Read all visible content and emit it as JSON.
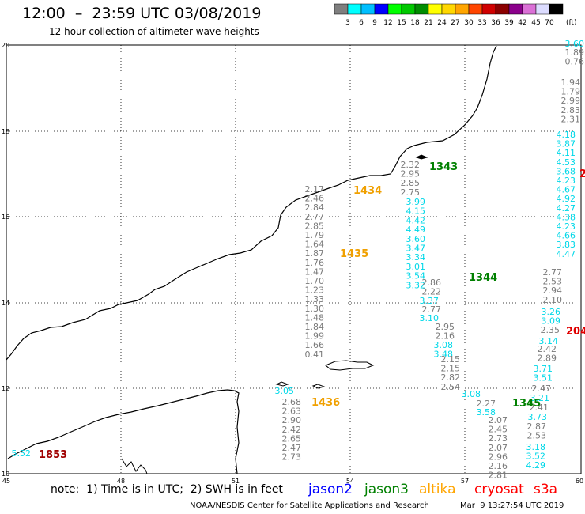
{
  "header": {
    "title": "12:00  –  23:59 UTC 03/08/2019",
    "subtitle": "12 hour collection of altimeter wave heights"
  },
  "colorbar": {
    "unit": "(ft)",
    "labels": [
      "3",
      "6",
      "9",
      "12",
      "15",
      "18",
      "21",
      "24",
      "27",
      "30",
      "33",
      "36",
      "39",
      "42",
      "45",
      "70"
    ],
    "colors": [
      "#7f7f7f",
      "#00ffff",
      "#00bfff",
      "#0000ff",
      "#00ff00",
      "#00c800",
      "#008c00",
      "#ffff00",
      "#ffd700",
      "#ffa500",
      "#ff4500",
      "#d00000",
      "#8b0000",
      "#8b008b",
      "#da70d6",
      "#dcdcff",
      "#000000"
    ]
  },
  "axes": {
    "lon_labels": [
      "45",
      "48",
      "51",
      "54",
      "57",
      "60"
    ],
    "lat_labels": [
      "20",
      "18",
      "16",
      "14",
      "12",
      "10"
    ]
  },
  "map": {
    "track_colors": {
      "gray": "#7a7a7a",
      "cyan": "#00d8e8",
      "green": "#008000",
      "orange": "#f0a000",
      "darkred": "#a00000",
      "red": "#e00000"
    },
    "tracks": [
      {
        "color": "gray",
        "values": [
          "2.17",
          "2.46",
          "2.84",
          "2.77",
          "2.85",
          "1.79",
          "1.64",
          "1.87",
          "1.76",
          "1.47",
          "1.70",
          "1.23",
          "1.33",
          "1.30",
          "1.48",
          "1.84",
          "1.99",
          "1.66",
          "0.41"
        ]
      },
      {
        "color": "cyan",
        "values": [
          "3.05"
        ]
      },
      {
        "color": "gray",
        "values": [
          "2.68",
          "2.63",
          "2.90",
          "2.42",
          "2.65",
          "2.47",
          "2.73"
        ]
      },
      {
        "color": "gray",
        "values": [
          "2.32",
          "2.95",
          "2.85",
          "2.75"
        ]
      },
      {
        "color": "cyan",
        "values": [
          "3.99",
          "4.15",
          "4.42",
          "4.49",
          "3.60",
          "3.47",
          "3.34",
          "3.01",
          "3.54",
          "3.32"
        ]
      },
      {
        "color": "gray",
        "values": [
          "2.86",
          "2.22"
        ]
      },
      {
        "color": "cyan",
        "values": [
          "3.37"
        ]
      },
      {
        "color": "gray",
        "values": [
          "2.77"
        ]
      },
      {
        "color": "cyan",
        "values": [
          "3.10"
        ]
      },
      {
        "color": "gray",
        "values": [
          "2.95",
          "2.16"
        ]
      },
      {
        "color": "cyan",
        "values": [
          "3.08",
          "3.48"
        ]
      },
      {
        "color": "gray",
        "values": [
          "2.15",
          "2.15",
          "2.82",
          "2.54"
        ]
      },
      {
        "color": "cyan",
        "values": [
          "3.08"
        ]
      },
      {
        "color": "gray",
        "values": [
          "2.27"
        ]
      },
      {
        "color": "cyan",
        "values": [
          "3.58"
        ]
      },
      {
        "color": "gray",
        "values": [
          "2.07",
          "2.45",
          "2.73",
          "2.07",
          "2.96",
          "2.16",
          "2.81"
        ]
      },
      {
        "color": "cyan",
        "values": [
          "3.60"
        ]
      },
      {
        "color": "gray",
        "values": [
          "1.89",
          "0.76"
        ]
      },
      {
        "color": "gray",
        "values": [
          "1.94",
          "1.79",
          "2.99",
          "2.83",
          "2.31"
        ]
      },
      {
        "color": "cyan",
        "values": [
          "4.18",
          "3.87",
          "4.11",
          "4.53",
          "3.68",
          "4.23",
          "4.67",
          "4.92",
          "4.27",
          "4.38",
          "4.23",
          "4.66",
          "3.83",
          "4.47"
        ]
      },
      {
        "color": "gray",
        "values": [
          "2.77",
          "2.53",
          "2.94",
          "2.10"
        ]
      },
      {
        "color": "cyan",
        "values": [
          "3.26",
          "3.09"
        ]
      },
      {
        "color": "gray",
        "values": [
          "2.35"
        ]
      },
      {
        "color": "cyan",
        "values": [
          "3.14"
        ]
      },
      {
        "color": "gray",
        "values": [
          "2.42",
          "2.89"
        ]
      },
      {
        "color": "cyan",
        "values": [
          "3.71",
          "3.51"
        ]
      },
      {
        "color": "gray",
        "values": [
          "2.47"
        ]
      },
      {
        "color": "cyan",
        "values": [
          "3.21"
        ]
      },
      {
        "color": "gray",
        "values": [
          "2.41"
        ]
      },
      {
        "color": "cyan",
        "values": [
          "3.73"
        ]
      },
      {
        "color": "gray",
        "values": [
          "2.87",
          "2.53"
        ]
      },
      {
        "color": "cyan",
        "values": [
          "3.18",
          "3.52",
          "4.29"
        ]
      },
      {
        "color": "cyan",
        "values": [
          "5.52"
        ]
      }
    ],
    "pass_labels": [
      {
        "text": "1434",
        "color": "orange"
      },
      {
        "text": "1435",
        "color": "orange"
      },
      {
        "text": "1436",
        "color": "orange"
      },
      {
        "text": "1343",
        "color": "green"
      },
      {
        "text": "1344",
        "color": "green"
      },
      {
        "text": "1345",
        "color": "green"
      },
      {
        "text": "1853",
        "color": "darkred"
      },
      {
        "text": "204",
        "color": "red"
      },
      {
        "text": "2",
        "color": "red"
      }
    ]
  },
  "footer": {
    "note": "note:  1) Time is in UTC;  2) SWH is in feet",
    "satellites": [
      {
        "name": "jason2",
        "color": "#0000ff"
      },
      {
        "name": "jason3",
        "color": "#008000"
      },
      {
        "name": "altika",
        "color": "#ffa500"
      },
      {
        "name": "cryosat",
        "color": "#ff0000"
      },
      {
        "name": "s3a",
        "color": "#ff0000"
      }
    ],
    "credit": "NOAA/NESDIS Center for Satellite Applications and Research",
    "timestamp": "Mar  9 13:27:54 UTC 2019"
  }
}
